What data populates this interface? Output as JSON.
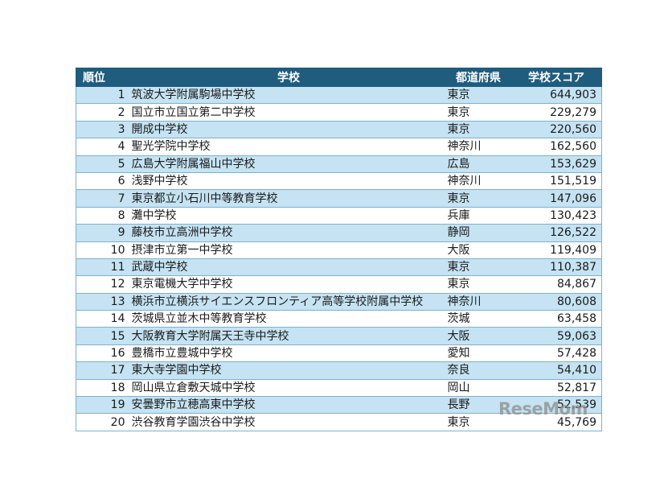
{
  "table": {
    "headers": {
      "rank": "順位",
      "school": "学校",
      "prefecture": "都道府県",
      "score": "学校スコア"
    },
    "rows": [
      {
        "rank": "1",
        "school": "筑波大学附属駒場中学校",
        "prefecture": "東京",
        "score": "644,903"
      },
      {
        "rank": "2",
        "school": "国立市立国立第二中学校",
        "prefecture": "東京",
        "score": "229,279"
      },
      {
        "rank": "3",
        "school": "開成中学校",
        "prefecture": "東京",
        "score": "220,560"
      },
      {
        "rank": "4",
        "school": "聖光学院中学校",
        "prefecture": "神奈川",
        "score": "162,560"
      },
      {
        "rank": "5",
        "school": "広島大学附属福山中学校",
        "prefecture": "広島",
        "score": "153,629"
      },
      {
        "rank": "6",
        "school": "浅野中学校",
        "prefecture": "神奈川",
        "score": "151,519"
      },
      {
        "rank": "7",
        "school": "東京都立小石川中等教育学校",
        "prefecture": "東京",
        "score": "147,096"
      },
      {
        "rank": "8",
        "school": "灘中学校",
        "prefecture": "兵庫",
        "score": "130,423"
      },
      {
        "rank": "9",
        "school": "藤枝市立高洲中学校",
        "prefecture": "静岡",
        "score": "126,522"
      },
      {
        "rank": "10",
        "school": "摂津市立第一中学校",
        "prefecture": "大阪",
        "score": "119,409"
      },
      {
        "rank": "11",
        "school": "武蔵中学校",
        "prefecture": "東京",
        "score": "110,387"
      },
      {
        "rank": "12",
        "school": "東京電機大学中学校",
        "prefecture": "東京",
        "score": "84,867"
      },
      {
        "rank": "13",
        "school": "横浜市立横浜サイエンスフロンティア高等学校附属中学校",
        "prefecture": "神奈川",
        "score": "80,608"
      },
      {
        "rank": "14",
        "school": "茨城県立並木中等教育学校",
        "prefecture": "茨城",
        "score": "63,458"
      },
      {
        "rank": "15",
        "school": "大阪教育大学附属天王寺中学校",
        "prefecture": "大阪",
        "score": "59,063"
      },
      {
        "rank": "16",
        "school": "豊橋市立豊城中学校",
        "prefecture": "愛知",
        "score": "57,428"
      },
      {
        "rank": "17",
        "school": "東大寺学園中学校",
        "prefecture": "奈良",
        "score": "54,410"
      },
      {
        "rank": "18",
        "school": "岡山県立倉敷天城中学校",
        "prefecture": "岡山",
        "score": "52,817"
      },
      {
        "rank": "19",
        "school": "安曇野市立穂高東中学校",
        "prefecture": "長野",
        "score": "52,539"
      },
      {
        "rank": "20",
        "school": "渋谷教育学園渋谷中学校",
        "prefecture": "東京",
        "score": "45,769"
      }
    ]
  },
  "watermark": "ReseMom",
  "colors": {
    "header_bg": "#1f5c7e",
    "row_alt": "#c5e3f2",
    "border": "#7fb0cc"
  }
}
